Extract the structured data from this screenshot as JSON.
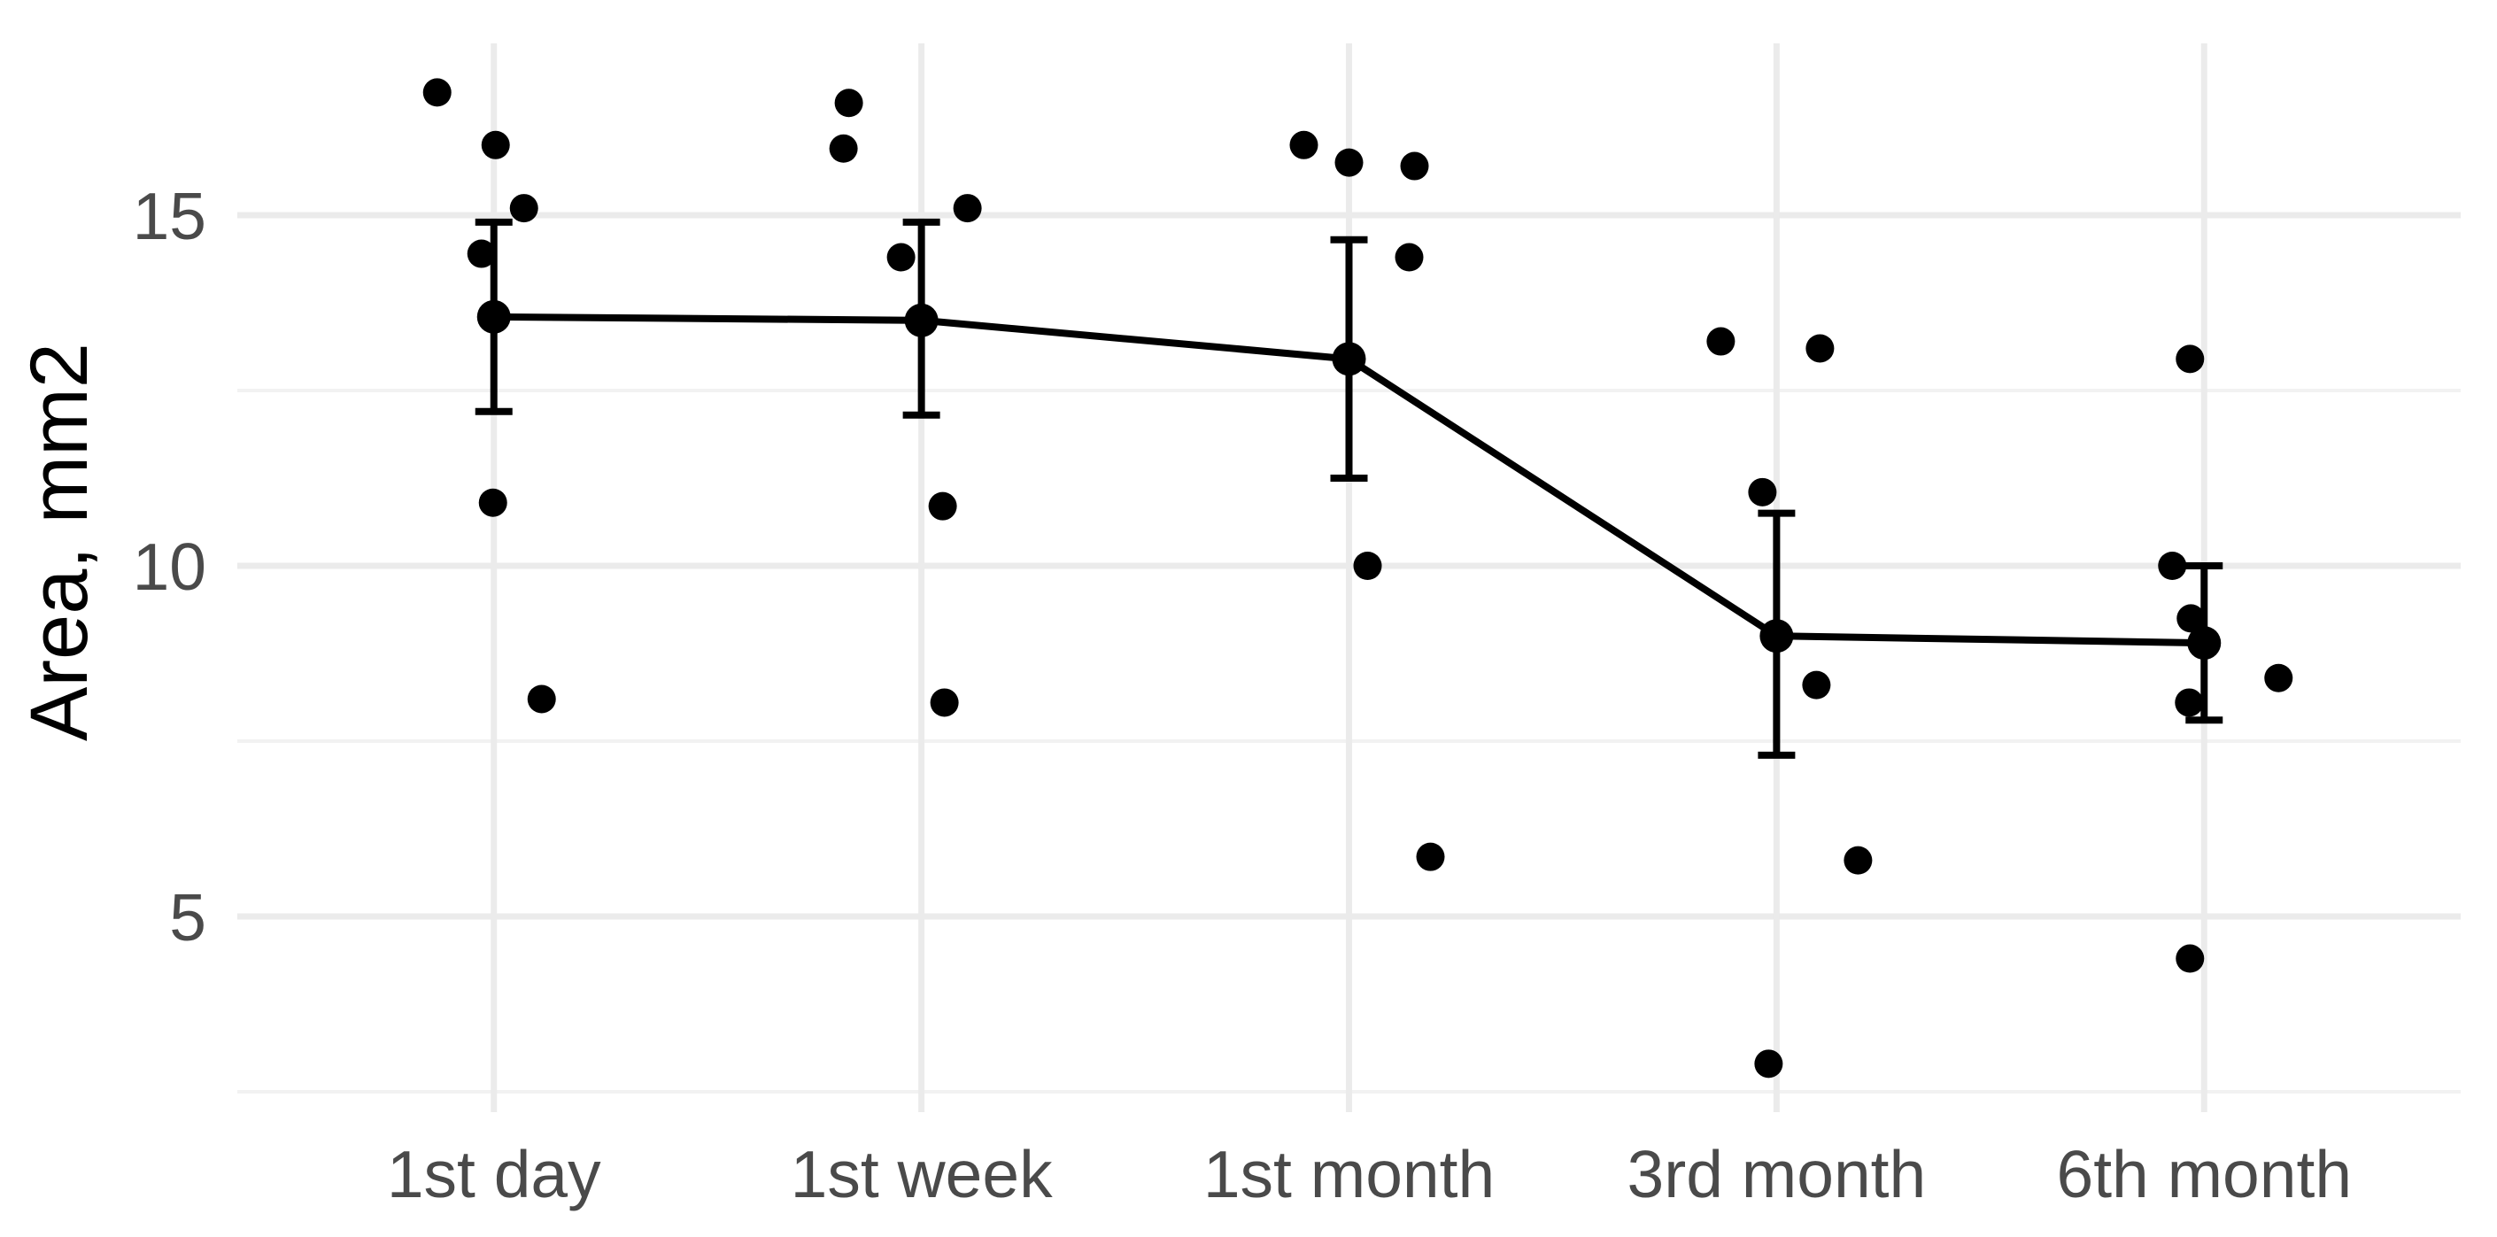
{
  "chart_data": {
    "type": "scatter",
    "title": "",
    "xlabel": "",
    "ylabel": "Area, mm2",
    "categories": [
      "1st day",
      "1st week",
      "1st month",
      "3rd month",
      "6th month"
    ],
    "y_major_ticks": [
      15,
      10,
      5
    ],
    "y_minor_ticks": [
      12.5,
      7.5,
      2.5
    ],
    "ylim": [
      2.2,
      17.45
    ],
    "grid": {
      "horizontal_major": true,
      "horizontal_minor": true,
      "vertical_major": true
    },
    "legend": "none",
    "series": [
      {
        "name": "individual-measurements",
        "type": "jittered-points",
        "groups": [
          {
            "category": "1st day",
            "points": [
              {
                "v": 16.75,
                "dx": -64
              },
              {
                "v": 16.0,
                "dx": 2
              },
              {
                "v": 15.1,
                "dx": 34
              },
              {
                "v": 14.45,
                "dx": -14
              },
              {
                "v": 10.9,
                "dx": -1
              },
              {
                "v": 8.1,
                "dx": 54
              }
            ]
          },
          {
            "category": "1st week",
            "points": [
              {
                "v": 16.6,
                "dx": -82
              },
              {
                "v": 15.95,
                "dx": -88
              },
              {
                "v": 15.1,
                "dx": 52
              },
              {
                "v": 14.4,
                "dx": -23
              },
              {
                "v": 10.85,
                "dx": 24
              },
              {
                "v": 8.05,
                "dx": 26
              }
            ]
          },
          {
            "category": "1st month",
            "points": [
              {
                "v": 16.0,
                "dx": -51
              },
              {
                "v": 15.75,
                "dx": 0
              },
              {
                "v": 15.7,
                "dx": 74
              },
              {
                "v": 14.4,
                "dx": 68
              },
              {
                "v": 10.0,
                "dx": 21
              },
              {
                "v": 5.85,
                "dx": 92
              }
            ]
          },
          {
            "category": "3rd month",
            "points": [
              {
                "v": 13.2,
                "dx": -63
              },
              {
                "v": 13.1,
                "dx": 49
              },
              {
                "v": 11.05,
                "dx": -16
              },
              {
                "v": 8.3,
                "dx": 45
              },
              {
                "v": 5.8,
                "dx": 92
              },
              {
                "v": 2.9,
                "dx": -9
              }
            ]
          },
          {
            "category": "6th month",
            "points": [
              {
                "v": 12.95,
                "dx": -16
              },
              {
                "v": 10.0,
                "dx": -36
              },
              {
                "v": 9.25,
                "dx": -15
              },
              {
                "v": 8.05,
                "dx": -17
              },
              {
                "v": 8.4,
                "dx": 84
              },
              {
                "v": 4.4,
                "dx": -16
              }
            ]
          }
        ]
      },
      {
        "name": "mean-line",
        "type": "line+point",
        "means": [
          13.55,
          13.5,
          12.95,
          9.0,
          8.9
        ]
      },
      {
        "name": "error-bars",
        "type": "errorbar",
        "upper": [
          14.9,
          14.9,
          14.65,
          10.75,
          10.0
        ],
        "lower": [
          12.2,
          12.15,
          11.25,
          7.3,
          7.8
        ]
      }
    ],
    "colors": {
      "points": "#000000",
      "mean_line": "#000000",
      "error_bars": "#000000",
      "grid_major": "#ebebeb",
      "grid_minor": "#f2f2f2",
      "axis_text": "#4a4a4a",
      "axis_title": "#000000",
      "background": "#ffffff"
    }
  }
}
